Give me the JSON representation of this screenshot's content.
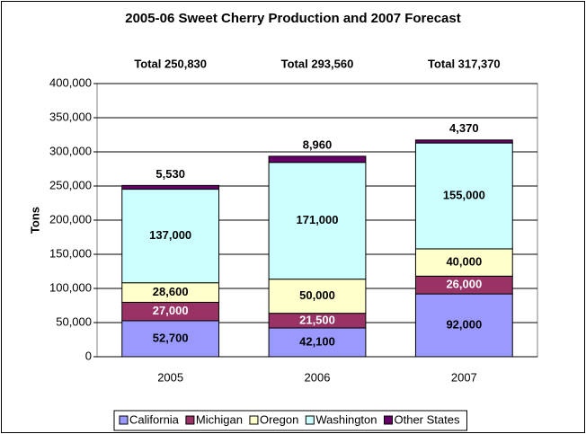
{
  "chart_data": {
    "type": "stacked_bar",
    "title": "2005-06 Sweet Cherry Production and 2007 Forecast",
    "y_label": "Tons",
    "categories": [
      "2005",
      "2006",
      "2007"
    ],
    "annotations": [
      "Total 250,830",
      "Total 293,560",
      "Total 317,370"
    ],
    "series": [
      {
        "name": "California",
        "color": "#9999ff",
        "values": [
          52700,
          42100,
          92000
        ],
        "value_labels": [
          "52,700",
          "42,100",
          "92,000"
        ]
      },
      {
        "name": "Michigan",
        "color": "#993366",
        "values": [
          27000,
          21500,
          26000
        ],
        "value_labels": [
          "27,000",
          "21,500",
          "26,000"
        ]
      },
      {
        "name": "Oregon",
        "color": "#ffffcc",
        "values": [
          28600,
          50000,
          40000
        ],
        "value_labels": [
          "28,600",
          "50,000",
          "40,000"
        ]
      },
      {
        "name": "Washington",
        "color": "#ccffff",
        "values": [
          137000,
          171000,
          155000
        ],
        "value_labels": [
          "137,000",
          "171,000",
          "155,000"
        ]
      },
      {
        "name": "Other States",
        "color": "#660066",
        "values": [
          5530,
          8960,
          4370
        ],
        "value_labels": [
          "5,530",
          "8,960",
          "4,370"
        ]
      }
    ],
    "ylim": [
      0,
      400000
    ],
    "yticks": [
      0,
      {
        "value": 50000,
        "label": "50,000"
      },
      {
        "value": 100000,
        "label": "100,000"
      },
      {
        "value": 150000,
        "label": "150,000"
      },
      {
        "value": 200000,
        "label": "200,000"
      },
      {
        "value": 250000,
        "label": "250,000"
      },
      {
        "value": 300000,
        "label": "300,000"
      },
      {
        "value": 350000,
        "label": "350,000"
      },
      {
        "value": 400000,
        "label": "400,000"
      }
    ],
    "grid": true,
    "legend": "bottom"
  }
}
